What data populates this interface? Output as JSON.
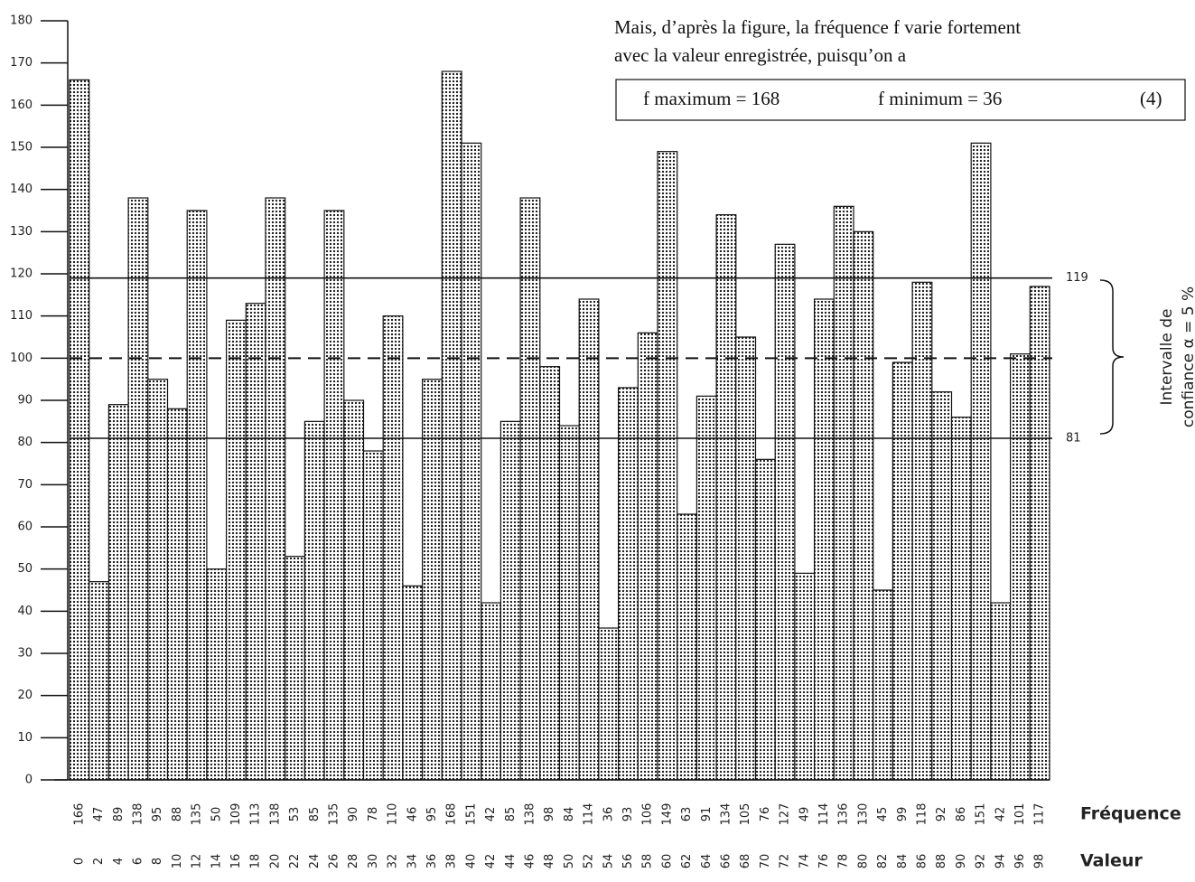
{
  "chart_data": {
    "type": "bar",
    "categories": [
      0,
      2,
      4,
      6,
      8,
      10,
      12,
      14,
      16,
      18,
      20,
      22,
      24,
      26,
      28,
      30,
      32,
      34,
      36,
      38,
      40,
      42,
      44,
      46,
      48,
      50,
      52,
      54,
      56,
      58,
      60,
      62,
      64,
      66,
      68,
      70,
      72,
      74,
      76,
      78,
      80,
      82,
      84,
      86,
      88,
      90,
      92,
      94,
      96,
      98
    ],
    "values": [
      166,
      47,
      89,
      138,
      95,
      88,
      135,
      50,
      109,
      113,
      138,
      53,
      85,
      135,
      90,
      78,
      110,
      46,
      95,
      168,
      151,
      42,
      85,
      138,
      98,
      84,
      114,
      36,
      93,
      106,
      149,
      63,
      91,
      134,
      105,
      76,
      127,
      49,
      114,
      136,
      130,
      45,
      99,
      118,
      92,
      86,
      151,
      42,
      101,
      117
    ],
    "ylim": [
      0,
      180
    ],
    "yticks": [
      0,
      10,
      20,
      30,
      40,
      50,
      60,
      70,
      80,
      90,
      100,
      110,
      120,
      130,
      140,
      150,
      160,
      170,
      180
    ],
    "labeled_lines": [
      119,
      81
    ],
    "dashed_lines": [
      100
    ],
    "value_row_label": "Fréquence",
    "category_row_label": "Valeur",
    "bracket_label": [
      "Intervalle de",
      "confiance α = 5 %"
    ]
  },
  "text": {
    "lines": [
      "Mais, d’après la figure, la fréquence f varie fortement",
      "avec la valeur enregistrée, puisqu’on a"
    ],
    "equation": {
      "left": "f maximum = 168",
      "right": "f minimum = 36",
      "number": "(4)"
    }
  }
}
